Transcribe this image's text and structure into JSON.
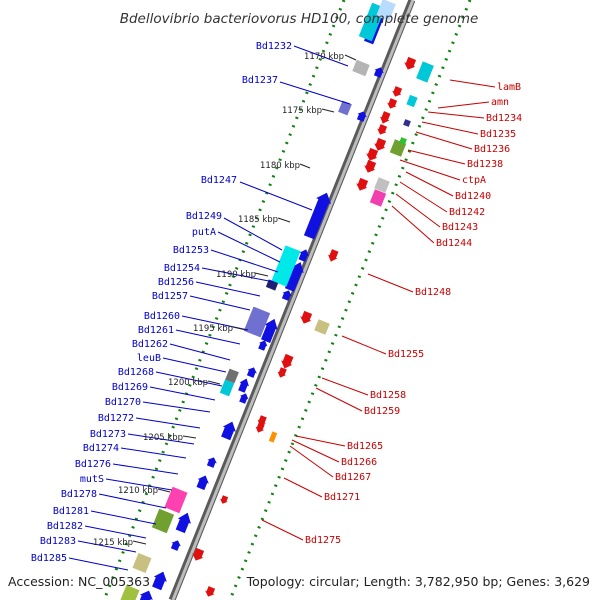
{
  "title": "Bdellovibrio bacteriovorus HD100, complete genome",
  "footer": {
    "accession": "Accession: NC_005363",
    "topology": "Topology: circular; Length: 3,782,950 bp; Genes: 3,629"
  },
  "colors": {
    "forward_gene": "#1010e0",
    "reverse_gene": "#e01010",
    "left_label": "#0000c8",
    "right_label": "#c80000",
    "backbone": "#8a8a8a",
    "tick": "#108010"
  },
  "kbp_ticks": [
    "1170 kbp",
    "1175 kbp",
    "1180 kbp",
    "1185 kbp",
    "1190 kbp",
    "1195 kbp",
    "1200 kbp",
    "1205 kbp",
    "1210 kbp",
    "1215 kbp"
  ],
  "left_labels": [
    "Bd1232",
    "Bd1237",
    "Bd1247",
    "Bd1249",
    "putA",
    "Bd1253",
    "Bd1254",
    "Bd1256",
    "Bd1257",
    "Bd1260",
    "Bd1261",
    "Bd1262",
    "leuB",
    "Bd1268",
    "Bd1269",
    "Bd1270",
    "Bd1272",
    "Bd1273",
    "Bd1274",
    "Bd1276",
    "mutS",
    "Bd1278",
    "Bd1281",
    "Bd1282",
    "Bd1283",
    "Bd1285"
  ],
  "right_labels": [
    "lamB",
    "amn",
    "Bd1234",
    "Bd1235",
    "Bd1236",
    "Bd1238",
    "ctpA",
    "Bd1240",
    "Bd1242",
    "Bd1243",
    "Bd1244",
    "Bd1248",
    "Bd1255",
    "Bd1258",
    "Bd1259",
    "Bd1265",
    "Bd1266",
    "Bd1267",
    "Bd1271",
    "Bd1275"
  ]
}
